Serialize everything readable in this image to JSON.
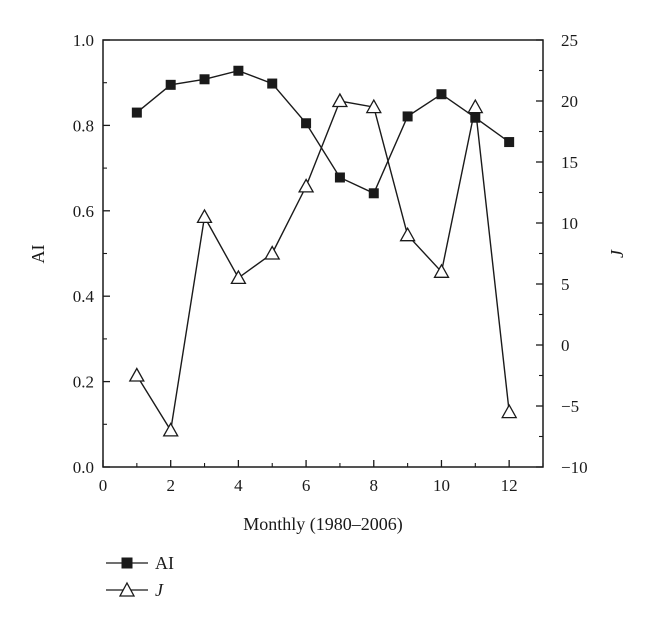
{
  "chart_data": {
    "type": "line",
    "title": "",
    "xlabel": "Monthly (1980–2006)",
    "ylabel_left": "AI",
    "ylabel_right": "J",
    "xlim": [
      0,
      13
    ],
    "ylim_left": [
      0.0,
      1.0
    ],
    "ylim_right": [
      -10,
      25
    ],
    "x_ticks": [
      0,
      2,
      4,
      6,
      8,
      10,
      12
    ],
    "x_tick_labels": [
      "0",
      "2",
      "4",
      "6",
      "8",
      "10",
      "12"
    ],
    "y_left_ticks": [
      0.0,
      0.2,
      0.4,
      0.6,
      0.8,
      1.0
    ],
    "y_left_tick_labels": [
      "0.0",
      "0.2",
      "0.4",
      "0.6",
      "0.8",
      "1.0"
    ],
    "y_right_ticks": [
      -10,
      -5,
      0,
      5,
      10,
      15,
      20,
      25
    ],
    "y_right_tick_labels": [
      "−10",
      "−5",
      "0",
      "5",
      "10",
      "15",
      "20",
      "25"
    ],
    "grid": false,
    "legend_position": "bottom-left",
    "series": [
      {
        "name": "AI",
        "axis": "left",
        "marker": "filled-square",
        "color": "#1a1a1a",
        "x": [
          1,
          2,
          3,
          4,
          5,
          6,
          7,
          8,
          9,
          10,
          11,
          12
        ],
        "values": [
          0.83,
          0.895,
          0.908,
          0.928,
          0.898,
          0.805,
          0.678,
          0.641,
          0.821,
          0.873,
          0.818,
          0.761
        ]
      },
      {
        "name": "J",
        "axis": "right",
        "marker": "open-triangle",
        "color": "#1a1a1a",
        "x": [
          1,
          2,
          3,
          4,
          5,
          6,
          7,
          8,
          9,
          10,
          11,
          12
        ],
        "values": [
          -2.5,
          -7.0,
          10.5,
          5.5,
          7.5,
          13.0,
          20.0,
          19.5,
          9.0,
          6.0,
          19.5,
          -5.5
        ]
      }
    ]
  }
}
